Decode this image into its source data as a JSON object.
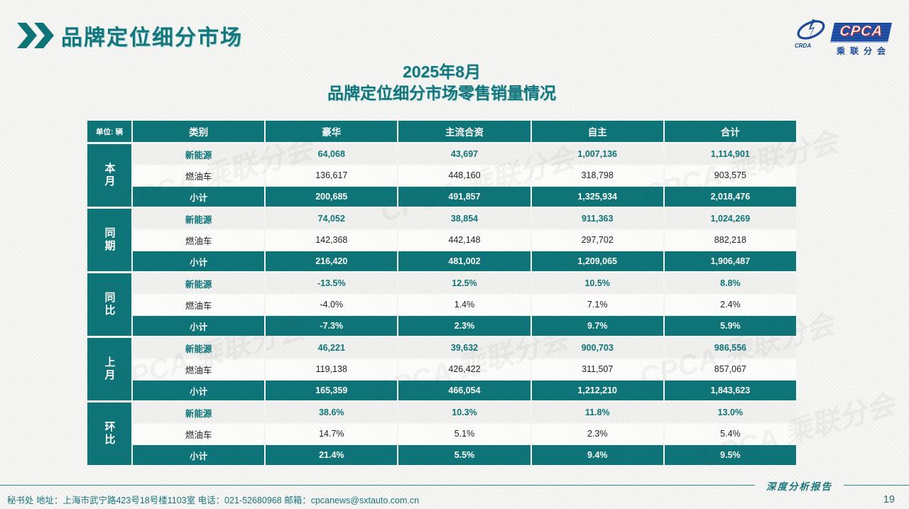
{
  "header": {
    "title": "品牌定位细分市场"
  },
  "logo": {
    "acronym": "CPCA",
    "subtitle": "乘联分会",
    "emblem_text": "CRDA"
  },
  "report_title": {
    "line1": "2025年8月",
    "line2": "品牌定位细分市场零售销量情况"
  },
  "table": {
    "unit_label": "单位: 辆",
    "category_header": "类别",
    "columns": [
      "豪华",
      "主流合资",
      "自主",
      "合计"
    ],
    "row_groups": [
      {
        "label": "本月",
        "rows": [
          {
            "category": "新能源",
            "style": "nev",
            "values": [
              "64,068",
              "43,697",
              "1,007,136",
              "1,114,901"
            ]
          },
          {
            "category": "燃油车",
            "style": "ice",
            "values": [
              "136,617",
              "448,160",
              "318,798",
              "903,575"
            ]
          },
          {
            "category": "小计",
            "style": "subtotal",
            "values": [
              "200,685",
              "491,857",
              "1,325,934",
              "2,018,476"
            ]
          }
        ]
      },
      {
        "label": "同期",
        "rows": [
          {
            "category": "新能源",
            "style": "nev",
            "values": [
              "74,052",
              "38,854",
              "911,363",
              "1,024,269"
            ]
          },
          {
            "category": "燃油车",
            "style": "ice",
            "values": [
              "142,368",
              "442,148",
              "297,702",
              "882,218"
            ]
          },
          {
            "category": "小计",
            "style": "subtotal",
            "values": [
              "216,420",
              "481,002",
              "1,209,065",
              "1,906,487"
            ]
          }
        ]
      },
      {
        "label": "同比",
        "rows": [
          {
            "category": "新能源",
            "style": "nev",
            "values": [
              "-13.5%",
              "12.5%",
              "10.5%",
              "8.8%"
            ]
          },
          {
            "category": "燃油车",
            "style": "ice",
            "values": [
              "-4.0%",
              "1.4%",
              "7.1%",
              "2.4%"
            ]
          },
          {
            "category": "小计",
            "style": "subtotal",
            "values": [
              "-7.3%",
              "2.3%",
              "9.7%",
              "5.9%"
            ]
          }
        ]
      },
      {
        "label": "上月",
        "rows": [
          {
            "category": "新能源",
            "style": "nev",
            "values": [
              "46,221",
              "39,632",
              "900,703",
              "986,556"
            ]
          },
          {
            "category": "燃油车",
            "style": "ice",
            "values": [
              "119,138",
              "426,422",
              "311,507",
              "857,067"
            ]
          },
          {
            "category": "小计",
            "style": "subtotal",
            "values": [
              "165,359",
              "466,054",
              "1,212,210",
              "1,843,623"
            ]
          }
        ]
      },
      {
        "label": "环比",
        "rows": [
          {
            "category": "新能源",
            "style": "nev",
            "values": [
              "38.6%",
              "10.3%",
              "11.8%",
              "13.0%"
            ]
          },
          {
            "category": "燃油车",
            "style": "ice",
            "values": [
              "14.7%",
              "5.1%",
              "2.3%",
              "5.4%"
            ]
          },
          {
            "category": "小计",
            "style": "subtotal",
            "values": [
              "21.4%",
              "5.5%",
              "9.4%",
              "9.5%"
            ]
          }
        ]
      }
    ]
  },
  "watermark_text": "CPCA 乘联分会",
  "footer": {
    "secretariat": "秘书处   地址：上海市武宁路423号18号楼1103室  电话：021-52680968   邮箱：cpcanews@sxtauto.com.cn",
    "report_label": "深度分析报告",
    "page_number": "19"
  },
  "colors": {
    "teal": "#0e7478",
    "teal_text": "#12767c",
    "logo_blue": "#1b4a9b"
  }
}
